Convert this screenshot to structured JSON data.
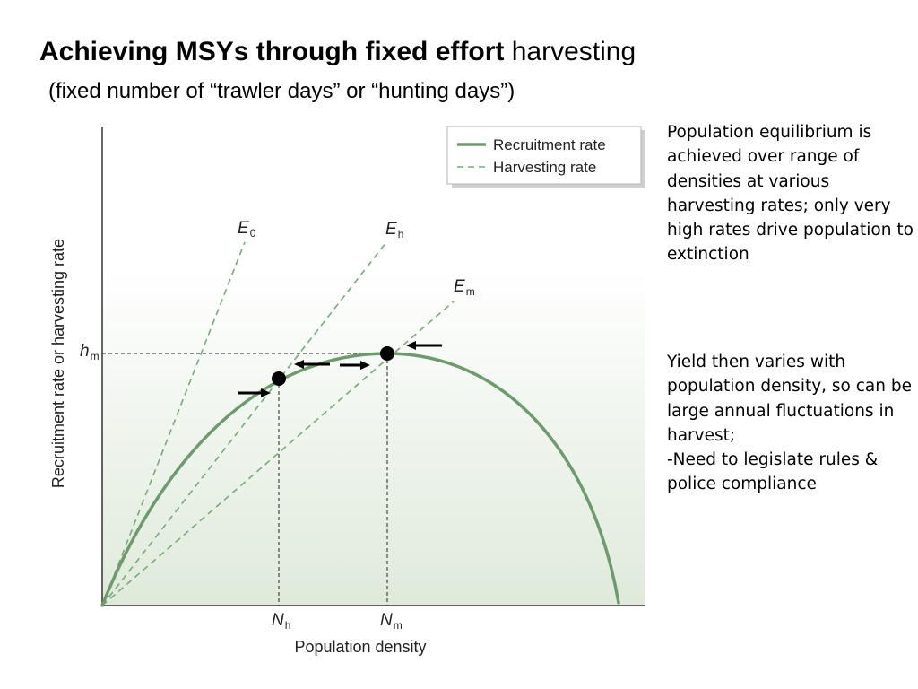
{
  "title": {
    "bold_part": "Achieving MSYs through fixed effort",
    "normal_part": " harvesting"
  },
  "subtitle": "(fixed number of “trawler days” or “hunting days”)",
  "notes": [
    "Population equilibrium is achieved over range of densities at various harvesting rates; only very high rates drive population to extinction",
    "Yield then varies with population density, so can be large annual fluctuations in harvest;\n-Need to legislate rules & police compliance"
  ],
  "figure": {
    "xlabel": "Population density",
    "ylabel": "Recruitment rate or harvesting rate",
    "legend": {
      "recruitment": "Recruitment rate",
      "harvesting": "Harvesting rate"
    },
    "lines": [
      {
        "id": "E0",
        "base": "E",
        "sub": "0"
      },
      {
        "id": "Eh",
        "base": "E",
        "sub": "h"
      },
      {
        "id": "Em",
        "base": "E",
        "sub": "m"
      }
    ],
    "y_marker": {
      "base": "h",
      "sub": "m"
    },
    "x_markers": [
      {
        "base": "N",
        "sub": "h"
      },
      {
        "base": "N",
        "sub": "m"
      }
    ],
    "colors": {
      "curve": "#6e9a6e",
      "harvest_lines": "#7aa87a",
      "background_gradient_top": "#ffffff",
      "background_gradient_bottom": "#dfeadb",
      "equilibrium_points": "#000000",
      "arrows": "#000000"
    }
  }
}
